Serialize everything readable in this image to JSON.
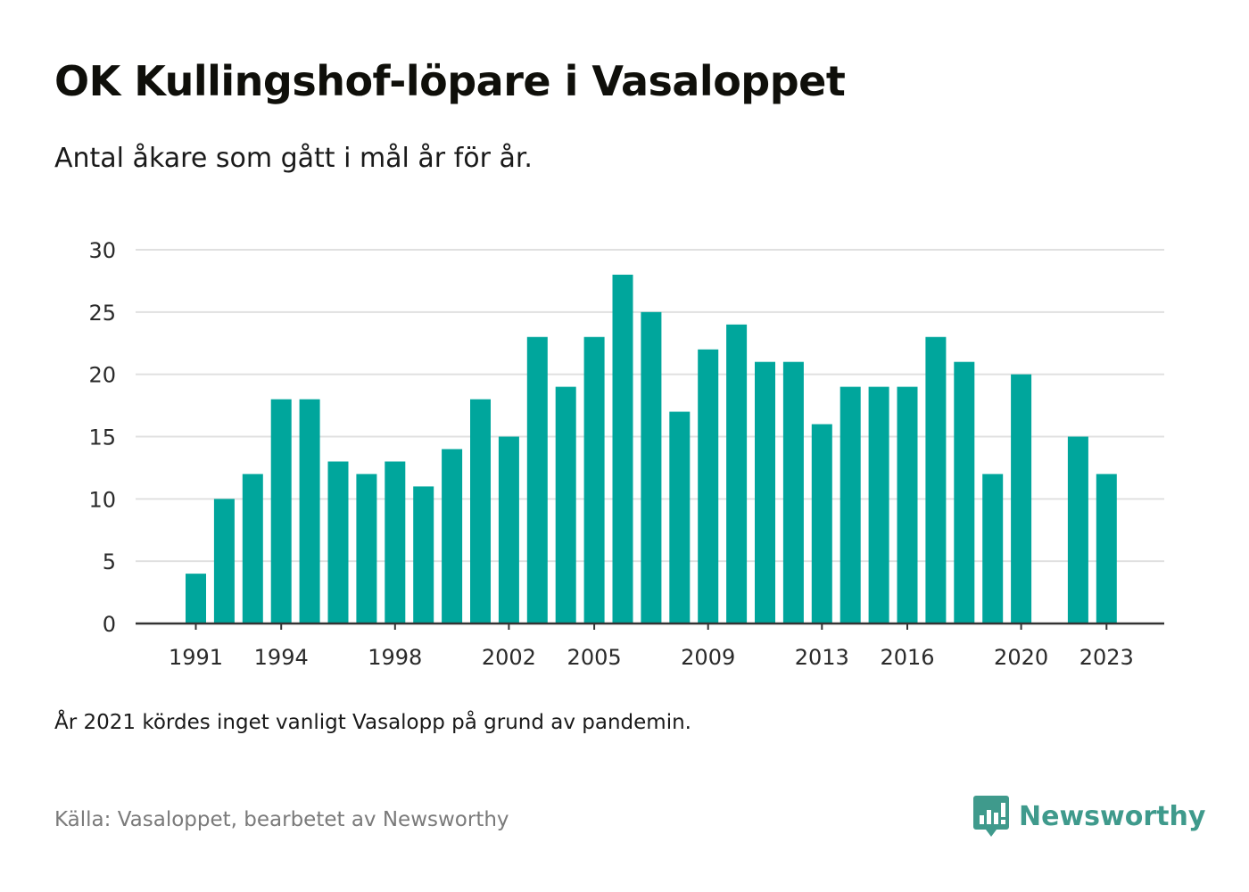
{
  "title": "OK Kullingshof-löpare i Vasaloppet",
  "subtitle": "Antal åkare som gått i mål år för år.",
  "note": "År 2021 kördes inget vanligt Vasalopp på grund av pandemin.",
  "source": "Källa: Vasaloppet, bearbetet av Newsworthy",
  "brand": {
    "name": "Newsworthy",
    "icon": "newsworthy-logo-icon"
  },
  "colors": {
    "bar": "#00a69c",
    "grid": "#e0e0e0",
    "axis": "#333333",
    "brand": "#3f9a8c"
  },
  "chart_data": {
    "type": "bar",
    "x": [
      1991,
      1992,
      1993,
      1994,
      1995,
      1996,
      1997,
      1998,
      1999,
      2000,
      2001,
      2002,
      2003,
      2004,
      2005,
      2006,
      2007,
      2008,
      2009,
      2010,
      2011,
      2012,
      2013,
      2014,
      2015,
      2016,
      2017,
      2018,
      2019,
      2020,
      2021,
      2022,
      2023
    ],
    "values": [
      4,
      10,
      12,
      18,
      18,
      13,
      12,
      13,
      11,
      14,
      18,
      15,
      23,
      19,
      23,
      28,
      25,
      17,
      22,
      24,
      21,
      21,
      16,
      19,
      19,
      19,
      23,
      21,
      12,
      20,
      null,
      15,
      12
    ],
    "x_tick_labels": [
      "1991",
      "1994",
      "1998",
      "2002",
      "2005",
      "2009",
      "2013",
      "2016",
      "2020",
      "2023"
    ],
    "y_tick_labels": [
      "0",
      "5",
      "10",
      "15",
      "20",
      "25",
      "30"
    ],
    "ylim": [
      0,
      30
    ],
    "grid": true
  }
}
